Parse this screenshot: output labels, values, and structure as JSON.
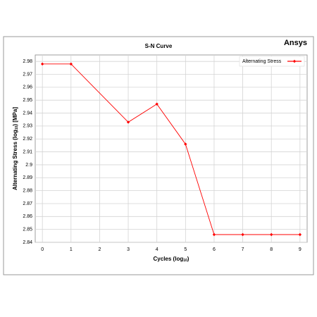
{
  "chart_data": {
    "type": "line",
    "title": "S-N Curve",
    "logo": "Ansys",
    "x_label": [
      "Cycles (log",
      "10",
      ")"
    ],
    "y_label": [
      "Alternating Stress (log",
      "10",
      ") [MPa]"
    ],
    "x": [
      0,
      1,
      3,
      4,
      5,
      6,
      7,
      8,
      9
    ],
    "series": [
      {
        "name": "Alternating Stress",
        "color": "#ff0000",
        "values": [
          2.978,
          2.978,
          2.933,
          2.947,
          2.916,
          2.846,
          2.846,
          2.846,
          2.846
        ]
      }
    ],
    "xlim": [
      -0.25,
      9.25
    ],
    "xticks": [
      0,
      1,
      2,
      3,
      4,
      5,
      6,
      7,
      8,
      9
    ],
    "ylim": [
      2.84,
      2.985
    ],
    "yticks": [
      2.84,
      2.85,
      2.86,
      2.87,
      2.88,
      2.89,
      2.9,
      2.91,
      2.92,
      2.93,
      2.94,
      2.95,
      2.96,
      2.97,
      2.98
    ],
    "grid": true,
    "legend": "upper right"
  }
}
